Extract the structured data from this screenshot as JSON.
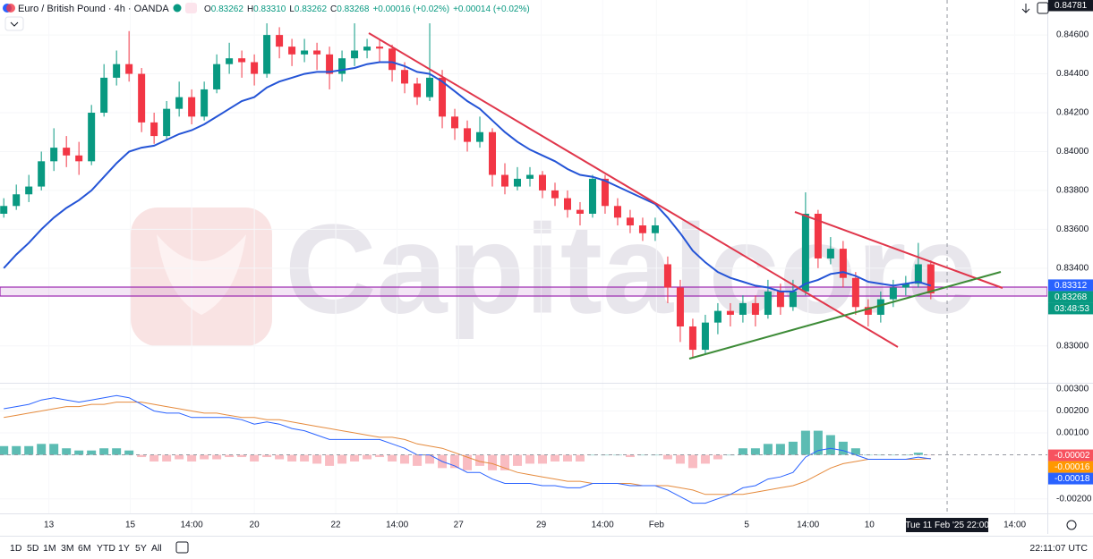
{
  "header": {
    "title": "Euro / British Pound · 4h · OANDA",
    "ohlc": [
      {
        "key": "O",
        "value": "0.83262"
      },
      {
        "key": "H",
        "value": "0.83310"
      },
      {
        "key": "L",
        "value": "0.83262"
      },
      {
        "key": "C",
        "value": "0.83268"
      }
    ],
    "change": "+0.00016 (+0.02%)",
    "change2": "+0.00014 (+0.02%)"
  },
  "watermark": "Capitalcore",
  "toolbar": {
    "ranges": [
      "1D",
      "5D",
      "1M",
      "3M",
      "6M",
      "YTD",
      "1Y",
      "5Y",
      "All"
    ],
    "time": "22:11:07 UTC"
  },
  "chart_data": [
    {
      "type": "candlestick",
      "up_color": "#089981",
      "down_color": "#f23645",
      "ma_color": "#2454d6",
      "ylim": [
        0.8281,
        0.8478
      ],
      "yticks": [
        {
          "value": 0.83,
          "label": "0.83000"
        },
        {
          "value": 0.834,
          "label": "0.83400"
        },
        {
          "value": 0.836,
          "label": "0.83600"
        },
        {
          "value": 0.838,
          "label": "0.83800"
        },
        {
          "value": 0.84,
          "label": "0.84000"
        },
        {
          "value": 0.842,
          "label": "0.84200"
        },
        {
          "value": 0.844,
          "label": "0.84400"
        },
        {
          "value": 0.846,
          "label": "0.84600"
        }
      ],
      "tags": [
        {
          "value": 0.84781,
          "label": "0.84781",
          "color": "#131722"
        },
        {
          "value": 0.83312,
          "label": "0.83312",
          "color": "#2962ff"
        },
        {
          "value": 0.83268,
          "label": "0.83268",
          "color": "#089981"
        }
      ],
      "countdown": "03:48:53",
      "candles": [
        [
          0.8368,
          0.8376,
          0.8366,
          0.8372
        ],
        [
          0.8372,
          0.8383,
          0.837,
          0.8378
        ],
        [
          0.8378,
          0.8388,
          0.8374,
          0.8382
        ],
        [
          0.8382,
          0.84,
          0.838,
          0.8395
        ],
        [
          0.8395,
          0.8412,
          0.839,
          0.8402
        ],
        [
          0.8402,
          0.8408,
          0.8392,
          0.8398
        ],
        [
          0.8398,
          0.8405,
          0.8388,
          0.8395
        ],
        [
          0.8395,
          0.8424,
          0.8393,
          0.842
        ],
        [
          0.842,
          0.8445,
          0.8418,
          0.8438
        ],
        [
          0.8438,
          0.8452,
          0.8434,
          0.8445
        ],
        [
          0.8445,
          0.8462,
          0.8436,
          0.844
        ],
        [
          0.844,
          0.8443,
          0.841,
          0.8415
        ],
        [
          0.8415,
          0.842,
          0.8404,
          0.8408
        ],
        [
          0.8408,
          0.8426,
          0.8406,
          0.8422
        ],
        [
          0.8422,
          0.8436,
          0.8418,
          0.8428
        ],
        [
          0.8428,
          0.8432,
          0.8414,
          0.8418
        ],
        [
          0.8418,
          0.8436,
          0.8416,
          0.8432
        ],
        [
          0.8432,
          0.845,
          0.843,
          0.8445
        ],
        [
          0.8445,
          0.8456,
          0.844,
          0.8448
        ],
        [
          0.8448,
          0.8452,
          0.8438,
          0.8446
        ],
        [
          0.8446,
          0.845,
          0.8434,
          0.844
        ],
        [
          0.844,
          0.8466,
          0.8438,
          0.846
        ],
        [
          0.846,
          0.8464,
          0.8448,
          0.8454
        ],
        [
          0.8454,
          0.8458,
          0.8444,
          0.845
        ],
        [
          0.845,
          0.8458,
          0.8446,
          0.8452
        ],
        [
          0.8452,
          0.8456,
          0.8442,
          0.845
        ],
        [
          0.845,
          0.8454,
          0.8432,
          0.844
        ],
        [
          0.844,
          0.8452,
          0.8436,
          0.8448
        ],
        [
          0.8448,
          0.8466,
          0.8444,
          0.8452
        ],
        [
          0.8452,
          0.8458,
          0.8448,
          0.8454
        ],
        [
          0.8454,
          0.8458,
          0.8446,
          0.8453
        ],
        [
          0.8453,
          0.8455,
          0.8436,
          0.8442
        ],
        [
          0.8442,
          0.8446,
          0.843,
          0.8435
        ],
        [
          0.8435,
          0.8438,
          0.8424,
          0.8428
        ],
        [
          0.8428,
          0.8466,
          0.8426,
          0.8438
        ],
        [
          0.8438,
          0.8442,
          0.8412,
          0.8418
        ],
        [
          0.8418,
          0.8422,
          0.8406,
          0.8412
        ],
        [
          0.8412,
          0.8416,
          0.84,
          0.8405
        ],
        [
          0.8405,
          0.8418,
          0.8402,
          0.841
        ],
        [
          0.841,
          0.8412,
          0.8382,
          0.8388
        ],
        [
          0.8388,
          0.8394,
          0.8378,
          0.8382
        ],
        [
          0.8382,
          0.8392,
          0.838,
          0.8386
        ],
        [
          0.8386,
          0.8392,
          0.8382,
          0.8388
        ],
        [
          0.8388,
          0.839,
          0.8376,
          0.838
        ],
        [
          0.838,
          0.8384,
          0.8372,
          0.8376
        ],
        [
          0.8376,
          0.838,
          0.8366,
          0.837
        ],
        [
          0.837,
          0.8374,
          0.8362,
          0.8368
        ],
        [
          0.8368,
          0.8388,
          0.8366,
          0.8386
        ],
        [
          0.8386,
          0.8388,
          0.8368,
          0.8372
        ],
        [
          0.8372,
          0.8376,
          0.8362,
          0.8366
        ],
        [
          0.8366,
          0.837,
          0.8358,
          0.8362
        ],
        [
          0.8362,
          0.8366,
          0.8354,
          0.8358
        ],
        [
          0.8358,
          0.8366,
          0.8354,
          0.8362
        ],
        [
          0.8342,
          0.8346,
          0.8322,
          0.833
        ],
        [
          0.833,
          0.8334,
          0.8302,
          0.831
        ],
        [
          0.831,
          0.8314,
          0.8294,
          0.8298
        ],
        [
          0.8298,
          0.8316,
          0.8296,
          0.8312
        ],
        [
          0.8312,
          0.8322,
          0.8306,
          0.8318
        ],
        [
          0.8318,
          0.8322,
          0.831,
          0.8316
        ],
        [
          0.8316,
          0.8326,
          0.8312,
          0.8322
        ],
        [
          0.8322,
          0.8326,
          0.831,
          0.8316
        ],
        [
          0.8316,
          0.8334,
          0.8314,
          0.8328
        ],
        [
          0.8328,
          0.8332,
          0.8316,
          0.832
        ],
        [
          0.832,
          0.8334,
          0.8318,
          0.8328
        ],
        [
          0.8328,
          0.8379,
          0.8326,
          0.8368
        ],
        [
          0.8368,
          0.837,
          0.834,
          0.8345
        ],
        [
          0.8345,
          0.8356,
          0.8342,
          0.835
        ],
        [
          0.835,
          0.8354,
          0.833,
          0.8335
        ],
        [
          0.8335,
          0.8338,
          0.8316,
          0.832
        ],
        [
          0.832,
          0.8324,
          0.831,
          0.8316
        ],
        [
          0.8316,
          0.8328,
          0.8312,
          0.8324
        ],
        [
          0.8324,
          0.8334,
          0.832,
          0.833
        ],
        [
          0.833,
          0.8336,
          0.8326,
          0.8332
        ],
        [
          0.8332,
          0.8353,
          0.833,
          0.8342
        ],
        [
          0.8342,
          0.8344,
          0.8324,
          0.8327
        ]
      ],
      "ma_values": [
        0.834,
        0.8347,
        0.8353,
        0.836,
        0.8366,
        0.8371,
        0.8375,
        0.838,
        0.8387,
        0.8394,
        0.84,
        0.8402,
        0.8403,
        0.8406,
        0.8409,
        0.8411,
        0.8414,
        0.8418,
        0.8422,
        0.8426,
        0.8428,
        0.8433,
        0.8436,
        0.8438,
        0.844,
        0.8441,
        0.8441,
        0.8442,
        0.8443,
        0.8445,
        0.8446,
        0.8446,
        0.8444,
        0.8441,
        0.844,
        0.8436,
        0.8431,
        0.8426,
        0.8422,
        0.8416,
        0.841,
        0.8405,
        0.8401,
        0.8398,
        0.8395,
        0.8391,
        0.8388,
        0.8387,
        0.8385,
        0.8382,
        0.8379,
        0.8376,
        0.8373,
        0.8366,
        0.8358,
        0.8349,
        0.8343,
        0.8338,
        0.8335,
        0.8333,
        0.8331,
        0.833,
        0.8328,
        0.8328,
        0.8332,
        0.8334,
        0.8337,
        0.8338,
        0.8336,
        0.8333,
        0.8332,
        0.8331,
        0.8332,
        0.8333,
        0.8331
      ]
    },
    {
      "type": "macd",
      "macd_color": "#2962ff",
      "signal_color": "#e58a3c",
      "pos_color": "#26a69a",
      "neg_color": "#f7a5ad",
      "xlim": [
        -0.3,
        83.3
      ],
      "xticks": [
        {
          "value": 3.6,
          "label": "13"
        },
        {
          "value": 10.1,
          "label": "15"
        },
        {
          "value": 15,
          "label": "14:00"
        },
        {
          "value": 20,
          "label": "20"
        },
        {
          "value": 26.5,
          "label": "22"
        },
        {
          "value": 31.4,
          "label": "14:00"
        },
        {
          "value": 36.3,
          "label": "27"
        },
        {
          "value": 42.9,
          "label": "29"
        },
        {
          "value": 47.8,
          "label": "14:00"
        },
        {
          "value": 52.1,
          "label": "Feb"
        },
        {
          "value": 59.3,
          "label": "5"
        },
        {
          "value": 64.2,
          "label": "14:00"
        },
        {
          "value": 69.1,
          "label": "10"
        },
        {
          "value": 80.7,
          "label": "14:00"
        }
      ],
      "crosshair": {
        "value": 75.3,
        "label": "Tue 11 Feb '25  22:00"
      },
      "ylim": [
        -0.0025,
        0.0032
      ],
      "yticks": [
        {
          "value": -0.002,
          "label": "-0.00200"
        },
        {
          "value": 0.001,
          "label": "0.00100"
        },
        {
          "value": 0.002,
          "label": "0.00200"
        },
        {
          "value": 0.003,
          "label": "0.00300"
        }
      ],
      "tags": [
        {
          "value": -2e-05,
          "label": "-0.00002",
          "color": "#f7525f"
        },
        {
          "value": -0.00016,
          "label": "-0.00016",
          "color": "#ff9800"
        },
        {
          "value": -0.00018,
          "label": "-0.00018",
          "color": "#2962ff"
        }
      ],
      "macd": [
        0.0021,
        0.0022,
        0.0023,
        0.0025,
        0.0026,
        0.0025,
        0.0024,
        0.0025,
        0.0026,
        0.0027,
        0.0026,
        0.0023,
        0.002,
        0.0019,
        0.0019,
        0.0017,
        0.0017,
        0.0017,
        0.0017,
        0.0016,
        0.0014,
        0.0015,
        0.0014,
        0.0012,
        0.0011,
        0.0009,
        0.0007,
        0.0007,
        0.0007,
        0.0007,
        0.0007,
        0.0005,
        0.0003,
        0,
        0,
        -0.0003,
        -0.0005,
        -0.0008,
        -0.0008,
        -0.0011,
        -0.0013,
        -0.0013,
        -0.0013,
        -0.0014,
        -0.0014,
        -0.0015,
        -0.0015,
        -0.0013,
        -0.0013,
        -0.0013,
        -0.0014,
        -0.0014,
        -0.0014,
        -0.0016,
        -0.0019,
        -0.0022,
        -0.0022,
        -0.002,
        -0.0018,
        -0.0015,
        -0.0014,
        -0.0011,
        -0.001,
        -0.0008,
        -0.0001,
        0.0002,
        0.0003,
        0.0002,
        0,
        -0.0002,
        -0.0002,
        -0.0002,
        -0.0002,
        -0.0001,
        -0.00018
      ],
      "signal": [
        0.0017,
        0.0018,
        0.0019,
        0.002,
        0.0021,
        0.0022,
        0.0022,
        0.0023,
        0.0023,
        0.0024,
        0.0024,
        0.0024,
        0.0023,
        0.0022,
        0.0021,
        0.002,
        0.0019,
        0.0019,
        0.0018,
        0.0017,
        0.0017,
        0.0016,
        0.0016,
        0.0015,
        0.0014,
        0.0013,
        0.0012,
        0.0011,
        0.001,
        0.0009,
        0.0008,
        0.0008,
        0.0007,
        0.0005,
        0.0004,
        0.0003,
        0.0001,
        -0.0001,
        -0.0003,
        -0.0004,
        -0.0006,
        -0.0008,
        -0.0009,
        -0.001,
        -0.0011,
        -0.0012,
        -0.0012,
        -0.0013,
        -0.0013,
        -0.0013,
        -0.0013,
        -0.0014,
        -0.0014,
        -0.0014,
        -0.0015,
        -0.0016,
        -0.0018,
        -0.0018,
        -0.0018,
        -0.0018,
        -0.0017,
        -0.0016,
        -0.0015,
        -0.0014,
        -0.0012,
        -0.0009,
        -0.0006,
        -0.0004,
        -0.0003,
        -0.0002,
        -0.0002,
        -0.0002,
        -0.0002,
        -0.0002,
        -0.00016
      ],
      "histogram": [
        0.0004,
        0.0004,
        0.0004,
        0.0005,
        0.0005,
        0.0003,
        0.0002,
        0.0002,
        0.0003,
        0.0003,
        0.0002,
        -0.0001,
        -0.0003,
        -0.0003,
        -0.0002,
        -0.0003,
        -0.0002,
        -0.0002,
        -0.0001,
        -0.0001,
        -0.0003,
        -0.0001,
        -0.0002,
        -0.0003,
        -0.0003,
        -0.0004,
        -0.0005,
        -0.0004,
        -0.0003,
        -0.0002,
        -0.0001,
        -0.0003,
        -0.0004,
        -0.0005,
        -0.0004,
        -0.0006,
        -0.0006,
        -0.0007,
        -0.0005,
        -0.0007,
        -0.0007,
        -0.0005,
        -0.0004,
        -0.0004,
        -0.0003,
        -0.0003,
        -0.0003,
        0,
        0,
        0,
        -0.0001,
        0,
        0,
        -0.0002,
        -0.0004,
        -0.0006,
        -0.0004,
        -0.0002,
        0,
        0.0003,
        0.0003,
        0.0005,
        0.0005,
        0.0006,
        0.0011,
        0.0011,
        0.0009,
        0.0006,
        0.0003,
        0,
        0,
        0,
        0,
        0.0001,
        -2e-05
      ]
    }
  ]
}
